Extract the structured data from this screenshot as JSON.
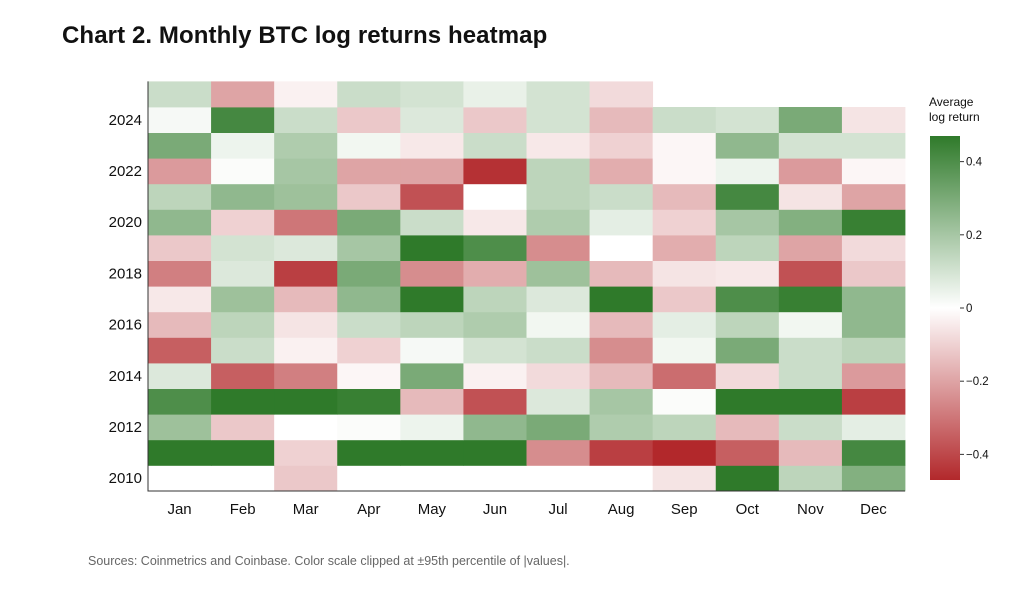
{
  "title": "Chart 2. Monthly BTC log returns heatmap",
  "source": "Sources: Coinmetrics and Coinbase. Color scale clipped at ±95th percentile of |values|.",
  "chart_data": {
    "type": "heatmap",
    "title": "Chart 2. Monthly BTC log returns heatmap",
    "x_categories": [
      "Jan",
      "Feb",
      "Mar",
      "Apr",
      "May",
      "Jun",
      "Jul",
      "Aug",
      "Sep",
      "Oct",
      "Nov",
      "Dec"
    ],
    "y_years": [
      2010,
      2011,
      2012,
      2013,
      2014,
      2015,
      2016,
      2017,
      2018,
      2019,
      2020,
      2021,
      2022,
      2023,
      2024,
      2025
    ],
    "y_tick_labels": [
      "2010",
      "2012",
      "2014",
      "2016",
      "2018",
      "2020",
      "2022",
      "2024"
    ],
    "colorbar": {
      "label": "Average log return",
      "range": [
        -0.47,
        0.47
      ],
      "ticks": [
        0.4,
        0.2,
        0,
        -0.2,
        -0.4
      ],
      "tick_labels": [
        "0.4",
        "0.2",
        "0",
        "−0.2",
        "−0.4"
      ],
      "colors": {
        "negative": "#b2282b",
        "zero": "#ffffff",
        "positive": "#2f7a2a"
      }
    },
    "values": [
      [
        0,
        0,
        -0.12,
        0,
        0,
        0,
        0,
        0,
        -0.06,
        0.47,
        0.15,
        0.28
      ],
      [
        0.47,
        0.47,
        -0.1,
        0.47,
        0.47,
        0.47,
        -0.25,
        -0.42,
        -0.47,
        -0.35,
        -0.15,
        0.42
      ],
      [
        0.22,
        -0.12,
        0,
        0.01,
        0.04,
        0.25,
        0.3,
        0.18,
        0.15,
        -0.15,
        0.12,
        0.06
      ],
      [
        0.4,
        0.47,
        0.47,
        0.45,
        -0.15,
        -0.38,
        0.08,
        0.2,
        0.01,
        0.47,
        0.47,
        -0.42
      ],
      [
        0.08,
        -0.35,
        -0.28,
        -0.02,
        0.3,
        -0.03,
        -0.08,
        -0.15,
        -0.32,
        -0.08,
        0.12,
        -0.22
      ],
      [
        -0.35,
        0.12,
        -0.03,
        -0.1,
        0.02,
        0.1,
        0.12,
        -0.25,
        0.03,
        0.3,
        0.12,
        0.15
      ],
      [
        -0.15,
        0.15,
        -0.06,
        0.12,
        0.15,
        0.18,
        0.03,
        -0.15,
        0.06,
        0.15,
        0.03,
        0.25
      ],
      [
        -0.05,
        0.22,
        -0.15,
        0.25,
        0.47,
        0.15,
        0.08,
        0.47,
        -0.12,
        0.4,
        0.45,
        0.25
      ],
      [
        -0.28,
        0.08,
        -0.42,
        0.3,
        -0.25,
        -0.18,
        0.22,
        -0.15,
        -0.06,
        -0.05,
        -0.38,
        -0.12
      ],
      [
        -0.12,
        0.1,
        0.08,
        0.2,
        0.47,
        0.4,
        -0.25,
        0,
        -0.18,
        0.15,
        -0.2,
        -0.08
      ],
      [
        0.25,
        -0.1,
        -0.3,
        0.3,
        0.12,
        -0.05,
        0.18,
        0.06,
        -0.1,
        0.2,
        0.28,
        0.45
      ],
      [
        0.15,
        0.25,
        0.22,
        -0.12,
        -0.38,
        0,
        0.15,
        0.12,
        -0.15,
        0.42,
        -0.06,
        -0.2
      ],
      [
        -0.22,
        0.01,
        0.2,
        -0.2,
        -0.2,
        -0.45,
        0.15,
        -0.18,
        -0.02,
        0.04,
        -0.22,
        -0.02
      ],
      [
        0.3,
        0.04,
        0.18,
        0.03,
        -0.05,
        0.12,
        -0.05,
        -0.1,
        -0.02,
        0.25,
        0.1,
        0.1
      ],
      [
        0.02,
        0.42,
        0.12,
        -0.12,
        0.08,
        -0.12,
        0.1,
        -0.15,
        0.12,
        0.1,
        0.3,
        -0.06
      ],
      [
        0.12,
        -0.2,
        -0.03,
        0.12,
        0.1,
        0.05,
        0.1,
        -0.08,
        null,
        null,
        null,
        null
      ]
    ]
  }
}
